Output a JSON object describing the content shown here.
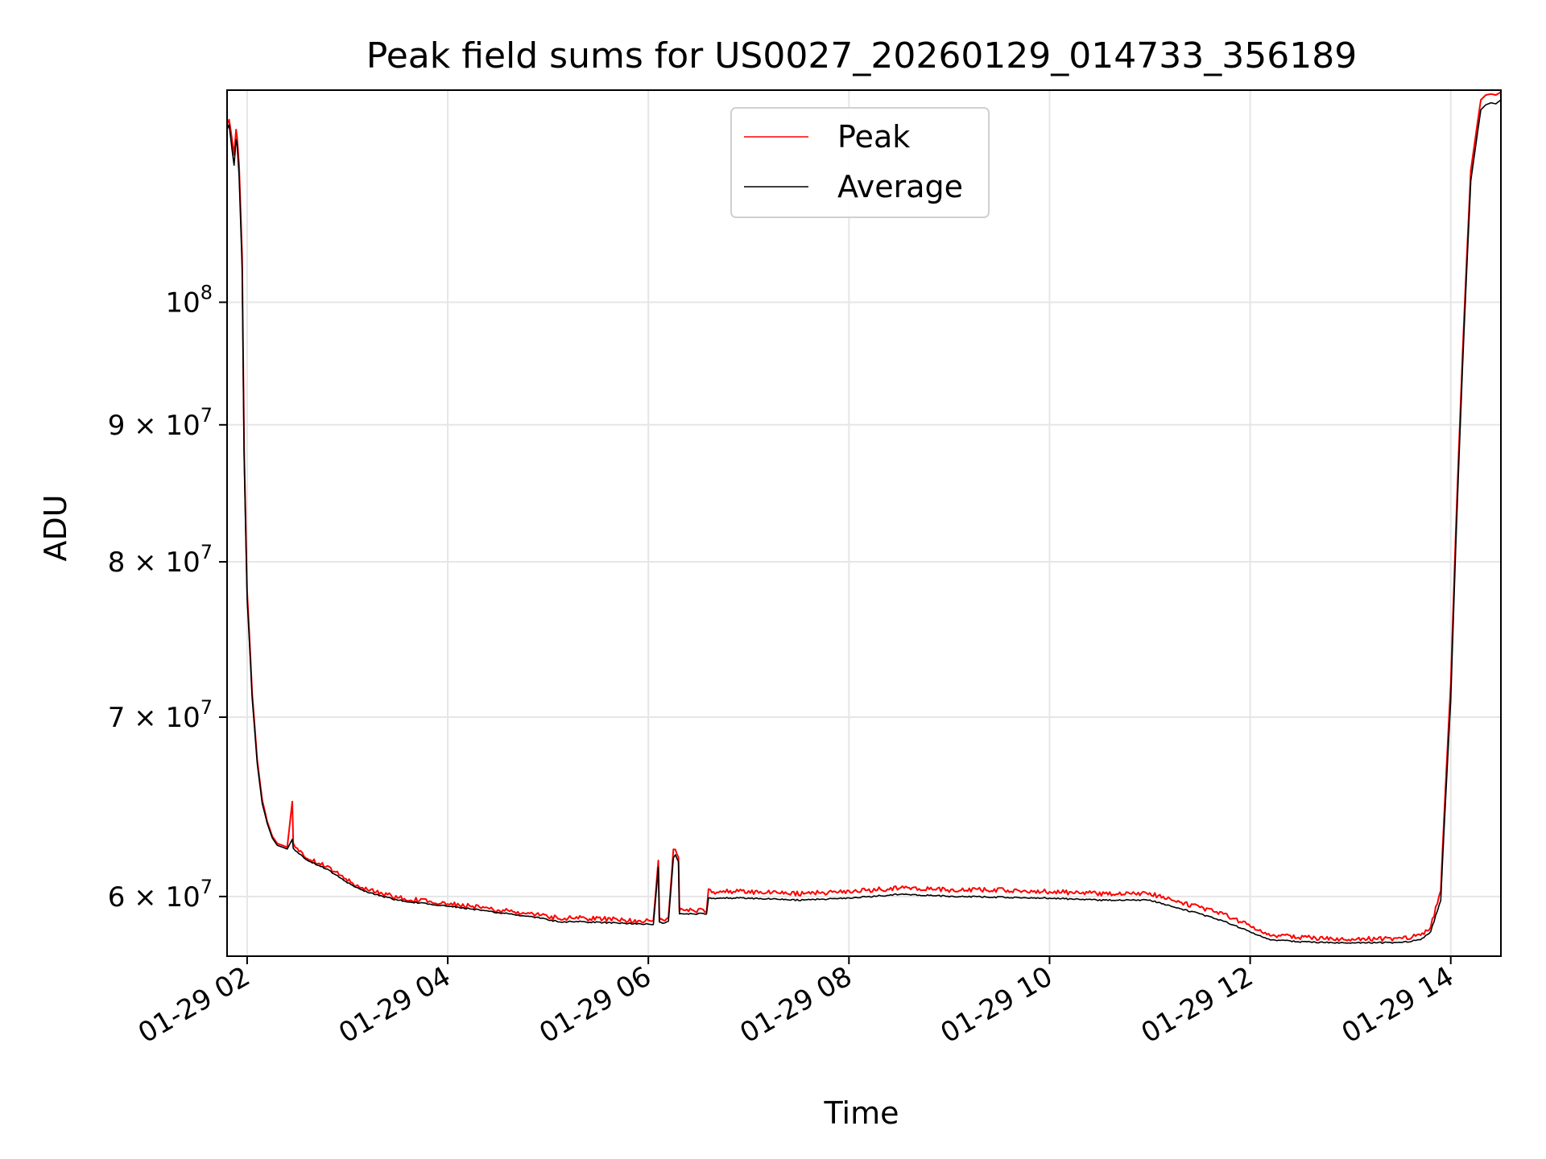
{
  "chart_data": {
    "type": "line",
    "title": "Peak field sums for US0027_20260129_014733_356189",
    "xlabel": "Time",
    "ylabel": "ADU",
    "yscale": "log",
    "ylim": [
      57000000,
      120000000
    ],
    "xlim_hours": [
      1.8,
      14.5
    ],
    "grid": true,
    "legend_position": "upper-center",
    "x_ticks": [
      {
        "value": 2,
        "label": "01-29 02"
      },
      {
        "value": 4,
        "label": "01-29 04"
      },
      {
        "value": 6,
        "label": "01-29 06"
      },
      {
        "value": 8,
        "label": "01-29 08"
      },
      {
        "value": 10,
        "label": "01-29 10"
      },
      {
        "value": 12,
        "label": "01-29 12"
      },
      {
        "value": 14,
        "label": "01-29 14"
      }
    ],
    "y_ticks": [
      {
        "value": 100000000,
        "mant": "",
        "base": "10",
        "exp": "8"
      },
      {
        "value": 90000000,
        "mant": "9 × ",
        "base": "10",
        "exp": "7"
      },
      {
        "value": 80000000,
        "mant": "8 × ",
        "base": "10",
        "exp": "7"
      },
      {
        "value": 70000000,
        "mant": "7 × ",
        "base": "10",
        "exp": "7"
      },
      {
        "value": 60000000,
        "mant": "6 × ",
        "base": "10",
        "exp": "7"
      }
    ],
    "series": [
      {
        "name": "Peak",
        "color": "#ff0000",
        "time_hours": [
          1.8,
          1.82,
          1.85,
          1.87,
          1.89,
          1.9,
          1.92,
          1.95,
          1.97,
          2.0,
          2.05,
          2.1,
          2.15,
          2.2,
          2.25,
          2.3,
          2.4,
          2.45,
          2.46,
          2.5,
          2.6,
          2.8,
          3.0,
          3.2,
          3.5,
          3.8,
          4.0,
          4.3,
          4.6,
          4.9,
          5.1,
          5.3,
          5.6,
          5.9,
          6.05,
          6.1,
          6.11,
          6.14,
          6.15,
          6.2,
          6.25,
          6.27,
          6.3,
          6.31,
          6.32,
          6.58,
          6.6,
          6.65,
          7.0,
          7.5,
          8.0,
          8.5,
          9.0,
          9.5,
          10.0,
          10.5,
          11.0,
          11.2,
          11.5,
          11.8,
          12.0,
          12.2,
          12.5,
          12.8,
          13.0,
          13.2,
          13.5,
          13.7,
          13.8,
          13.9,
          14.0,
          14.1,
          14.2,
          14.3,
          14.35,
          14.4,
          14.45,
          14.5
        ],
        "values": [
          116500000,
          117000000,
          115000000,
          113500000,
          116000000,
          115200000,
          112500000,
          104000000,
          88000000,
          78000000,
          71500000,
          67500000,
          65200000,
          64000000,
          63200000,
          62800000,
          62600000,
          65000000,
          62700000,
          62400000,
          62000000,
          61500000,
          60800000,
          60300000,
          59900000,
          59700000,
          59600000,
          59400000,
          59200000,
          59000000,
          58850000,
          58850000,
          58800000,
          58700000,
          58700000,
          61800000,
          58800000,
          58700000,
          58800000,
          58800000,
          62400000,
          62500000,
          62000000,
          59200000,
          59300000,
          59200000,
          60300000,
          60200000,
          60200000,
          60100000,
          60200000,
          60400000,
          60300000,
          60300000,
          60200000,
          60100000,
          60100000,
          59800000,
          59400000,
          58900000,
          58500000,
          58000000,
          57900000,
          57800000,
          57800000,
          57800000,
          57800000,
          58000000,
          58400000,
          60300000,
          72000000,
          92000000,
          112000000,
          119000000,
          119500000,
          119600000,
          119500000,
          119800000
        ]
      },
      {
        "name": "Average",
        "color": "#000000",
        "time_hours": [
          1.8,
          1.82,
          1.85,
          1.87,
          1.89,
          1.9,
          1.92,
          1.95,
          1.97,
          2.0,
          2.05,
          2.1,
          2.15,
          2.2,
          2.25,
          2.3,
          2.4,
          2.45,
          2.46,
          2.5,
          2.6,
          2.8,
          3.0,
          3.2,
          3.5,
          3.8,
          4.0,
          4.3,
          4.6,
          4.9,
          5.1,
          5.3,
          5.6,
          5.9,
          6.05,
          6.1,
          6.11,
          6.14,
          6.15,
          6.2,
          6.25,
          6.27,
          6.3,
          6.31,
          6.32,
          6.58,
          6.6,
          6.65,
          7.0,
          7.5,
          8.0,
          8.5,
          9.0,
          9.5,
          10.0,
          10.5,
          11.0,
          11.2,
          11.5,
          11.8,
          12.0,
          12.2,
          12.5,
          12.8,
          13.0,
          13.2,
          13.5,
          13.7,
          13.8,
          13.9,
          14.0,
          14.1,
          14.2,
          14.3,
          14.35,
          14.4,
          14.45,
          14.5
        ],
        "values": [
          116000000,
          116500000,
          114000000,
          112500000,
          115000000,
          114500000,
          111500000,
          103000000,
          87500000,
          77500000,
          71200000,
          67300000,
          65000000,
          63900000,
          63100000,
          62700000,
          62500000,
          63000000,
          62500000,
          62300000,
          61900000,
          61400000,
          60700000,
          60200000,
          59800000,
          59600000,
          59500000,
          59300000,
          59100000,
          58900000,
          58700000,
          58700000,
          58650000,
          58600000,
          58550000,
          61500000,
          58700000,
          58600000,
          58650000,
          58700000,
          62000000,
          62200000,
          61800000,
          59100000,
          59100000,
          59100000,
          59900000,
          59900000,
          59900000,
          59800000,
          59900000,
          60100000,
          60000000,
          59950000,
          59900000,
          59800000,
          59800000,
          59500000,
          59100000,
          58600000,
          58200000,
          57800000,
          57700000,
          57650000,
          57650000,
          57650000,
          57650000,
          57800000,
          58200000,
          59800000,
          71000000,
          91000000,
          111000000,
          118000000,
          118500000,
          118700000,
          118600000,
          119000000
        ]
      }
    ]
  }
}
